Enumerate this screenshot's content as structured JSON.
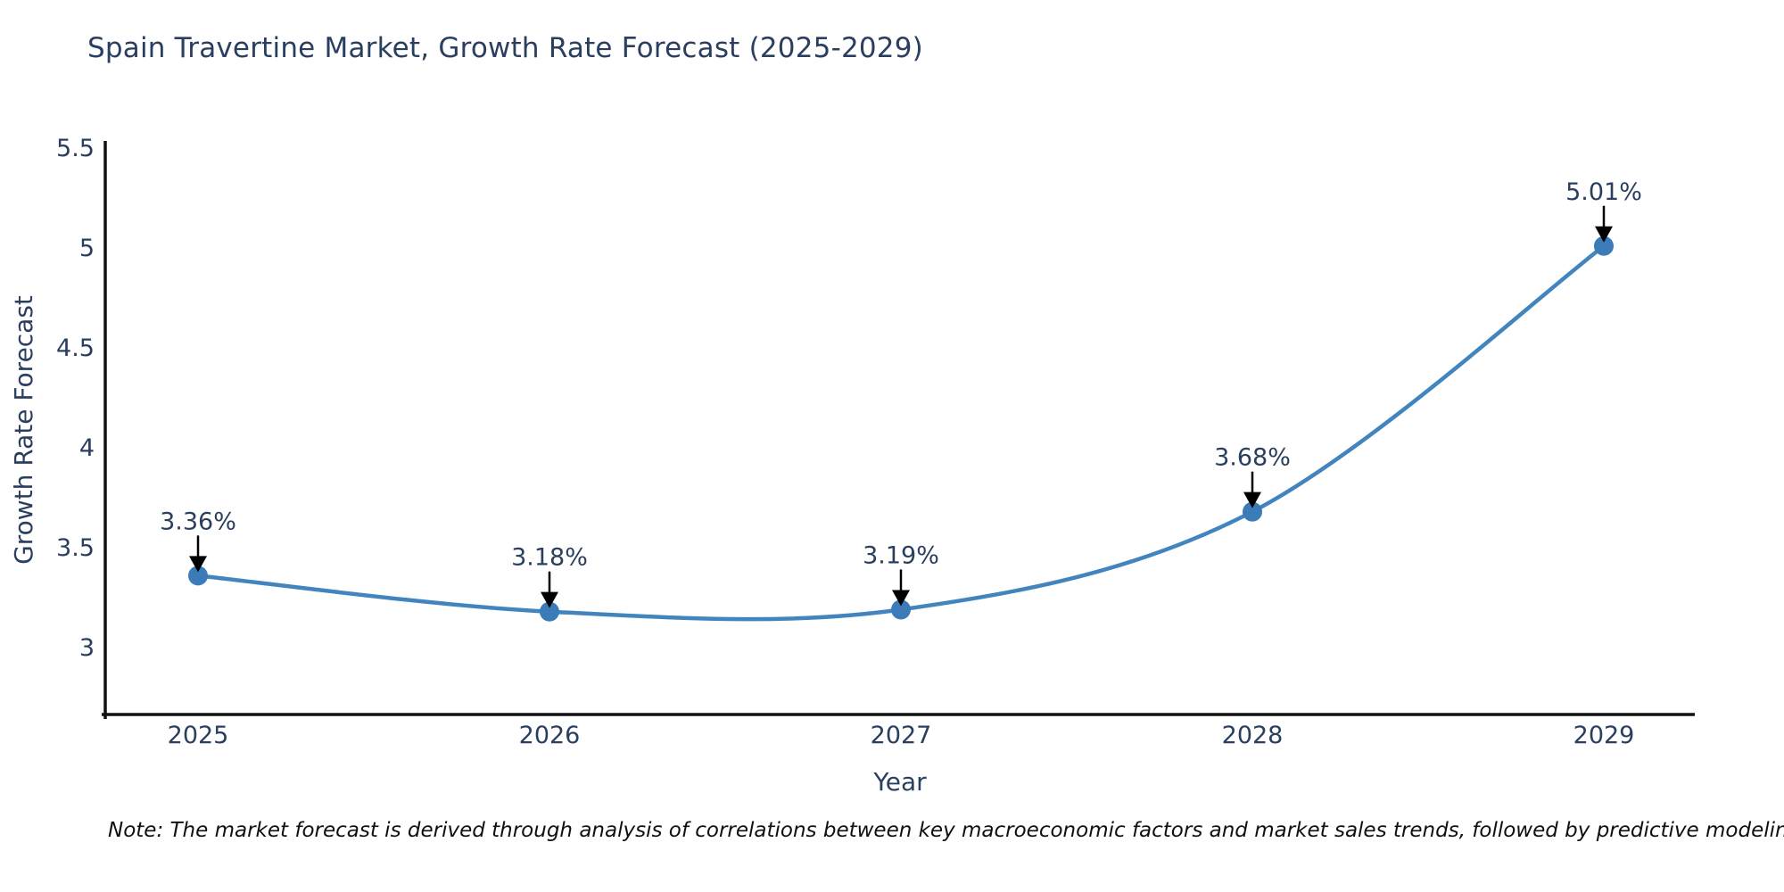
{
  "note": "Note: The market forecast is derived through analysis of correlations between key macroeconomic factors and market sales trends, followed by predictive modeling to project future sales",
  "colors": {
    "line": "#4285be",
    "marker": "#3a7bb8",
    "axis": "#111111",
    "text": "#2a3f5f",
    "annotation_arrow": "#000000",
    "note_text": "#101010",
    "background": "#ffffff"
  },
  "chart_data": {
    "type": "line",
    "title": "Spain Travertine Market, Growth Rate Forecast (2025-2029)",
    "x": [
      "2025",
      "2026",
      "2027",
      "2028",
      "2029"
    ],
    "values": [
      3.36,
      3.18,
      3.19,
      3.68,
      5.01
    ],
    "point_labels": [
      "3.36%",
      "3.18%",
      "3.19%",
      "3.68%",
      "5.01%"
    ],
    "xlabel": "Year",
    "ylabel": "Growth Rate Forecast",
    "ytick_labels": [
      "3",
      "3.5",
      "4",
      "4.5",
      "5",
      "5.5"
    ],
    "ytick_values": [
      3,
      3.5,
      4,
      4.5,
      5,
      5.5
    ],
    "ylim": [
      2.665,
      5.536
    ],
    "grid": false,
    "legend": false,
    "line_shape": "spline",
    "marker": "circle",
    "annotation_style": "percent label above point with downward black arrow"
  }
}
